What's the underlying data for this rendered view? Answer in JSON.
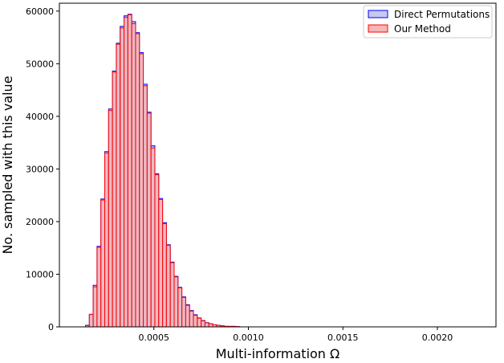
{
  "chart_data": {
    "type": "bar",
    "histogram": true,
    "xlabel": "Multi-information Ω",
    "ylabel": "No. sampled with this value",
    "xlim": [
      0.0,
      0.00231
    ],
    "ylim": [
      0,
      61500
    ],
    "x_ticks": [
      0.0005,
      0.001,
      0.0015,
      0.002
    ],
    "x_tick_labels": [
      "0.0005",
      "0.0010",
      "0.0015",
      "0.0020"
    ],
    "y_ticks": [
      0,
      10000,
      20000,
      30000,
      40000,
      50000,
      60000
    ],
    "y_tick_labels": [
      "0",
      "10000",
      "20000",
      "30000",
      "40000",
      "50000",
      "60000"
    ],
    "bin_start": 0.000138,
    "bin_width": 2.04e-05,
    "legend_position": "top-right",
    "series": [
      {
        "name": "Direct Permutations",
        "fill": "#c8c8f0",
        "edge": "#0000ff",
        "values": [
          300,
          2300,
          7900,
          15300,
          24300,
          33300,
          41400,
          48600,
          53900,
          57100,
          59100,
          59400,
          58000,
          55900,
          52100,
          46100,
          40800,
          34400,
          29100,
          24400,
          19800,
          15600,
          12300,
          9600,
          7500,
          5700,
          4200,
          3100,
          2300,
          1700,
          1200,
          800,
          600,
          400,
          300,
          200,
          100,
          100,
          100,
          50
        ]
      },
      {
        "name": "Our Method",
        "fill": "#f5b6b6",
        "edge": "#ff0000",
        "values": [
          250,
          2400,
          7600,
          15100,
          24100,
          33000,
          41100,
          48400,
          53700,
          56800,
          58800,
          59300,
          57600,
          55700,
          51900,
          45800,
          40600,
          34000,
          28900,
          24200,
          19600,
          15500,
          12200,
          9500,
          7400,
          5600,
          4100,
          3000,
          2200,
          1650,
          1150,
          780,
          580,
          400,
          280,
          180,
          100,
          80,
          60,
          40
        ]
      }
    ]
  }
}
